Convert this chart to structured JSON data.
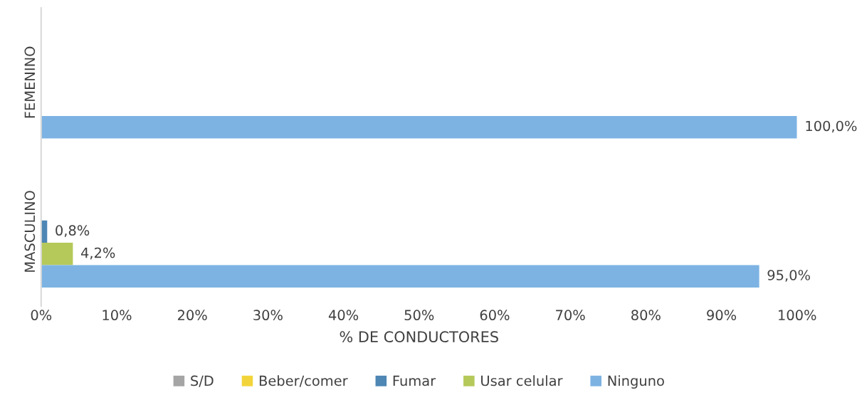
{
  "chart_data": {
    "type": "bar",
    "orientation": "horizontal",
    "xlabel": "% DE CONDUCTORES",
    "categories": [
      "FEMENINO",
      "MASCULINO"
    ],
    "series": [
      {
        "name": "S/D",
        "color": "#a5a5a5",
        "values": [
          null,
          null
        ],
        "value_labels": [
          null,
          null
        ]
      },
      {
        "name": "Beber/comer",
        "color": "#f2d43a",
        "values": [
          null,
          null
        ],
        "value_labels": [
          null,
          null
        ]
      },
      {
        "name": "Fumar",
        "color": "#4e86b4",
        "values": [
          null,
          0.8
        ],
        "value_labels": [
          null,
          "0,8%"
        ]
      },
      {
        "name": "Usar celular",
        "color": "#b5c95a",
        "values": [
          null,
          4.2
        ],
        "value_labels": [
          null,
          "4,2%"
        ]
      },
      {
        "name": "Ninguno",
        "color": "#7db3e3",
        "values": [
          100.0,
          95.0
        ],
        "value_labels": [
          "100,0%",
          "95,0%"
        ]
      }
    ],
    "xlim": [
      0,
      100
    ],
    "xticks": [
      {
        "value": 0,
        "label": "0%"
      },
      {
        "value": 10,
        "label": "10%"
      },
      {
        "value": 20,
        "label": "20%"
      },
      {
        "value": 30,
        "label": "30%"
      },
      {
        "value": 40,
        "label": "40%"
      },
      {
        "value": 50,
        "label": "50%"
      },
      {
        "value": 60,
        "label": "60%"
      },
      {
        "value": 70,
        "label": "70%"
      },
      {
        "value": 80,
        "label": "80%"
      },
      {
        "value": 90,
        "label": "90%"
      },
      {
        "value": 100,
        "label": "100%"
      }
    ],
    "grid": false,
    "legend": "bottom"
  }
}
